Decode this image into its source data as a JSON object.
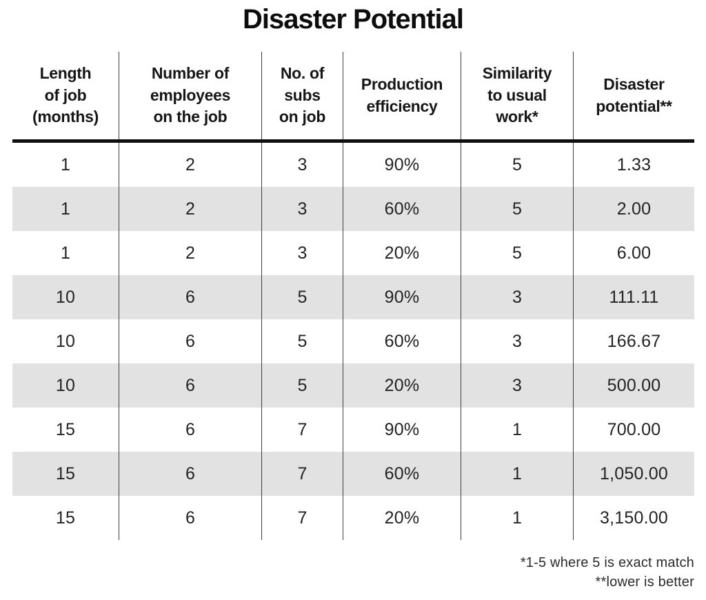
{
  "title": "Disaster Potential",
  "table": {
    "headers": [
      "Length\nof job\n(months)",
      "Number of\nemployees\non the job",
      "No. of\nsubs\non job",
      "Production\nefficiency",
      "Similarity\nto usual\nwork*",
      "Disaster\npotential**"
    ],
    "rows": [
      [
        "1",
        "2",
        "3",
        "90%",
        "5",
        "1.33"
      ],
      [
        "1",
        "2",
        "3",
        "60%",
        "5",
        "2.00"
      ],
      [
        "1",
        "2",
        "3",
        "20%",
        "5",
        "6.00"
      ],
      [
        "10",
        "6",
        "5",
        "90%",
        "3",
        "111.11"
      ],
      [
        "10",
        "6",
        "5",
        "60%",
        "3",
        "166.67"
      ],
      [
        "10",
        "6",
        "5",
        "20%",
        "3",
        "500.00"
      ],
      [
        "15",
        "6",
        "7",
        "90%",
        "1",
        "700.00"
      ],
      [
        "15",
        "6",
        "7",
        "60%",
        "1",
        "1,050.00"
      ],
      [
        "15",
        "6",
        "7",
        "20%",
        "1",
        "3,150.00"
      ]
    ]
  },
  "footnotes": {
    "line1": "*1-5 where 5 is exact match",
    "line2": "**lower is better"
  },
  "colors": {
    "shaded_row": "#e2e2e2",
    "divider": "#3c3c3c",
    "header_rule": "#0f0f0f",
    "text": "#1a1a1a"
  },
  "chart_data": {
    "type": "table",
    "title": "Disaster Potential",
    "columns": [
      "Length of job (months)",
      "Number of employees on the job",
      "No. of subs on job",
      "Production efficiency",
      "Similarity to usual work*",
      "Disaster potential**"
    ],
    "rows": [
      [
        1,
        2,
        3,
        "90%",
        5,
        1.33
      ],
      [
        1,
        2,
        3,
        "60%",
        5,
        2.0
      ],
      [
        1,
        2,
        3,
        "20%",
        5,
        6.0
      ],
      [
        10,
        6,
        5,
        "90%",
        3,
        111.11
      ],
      [
        10,
        6,
        5,
        "60%",
        3,
        166.67
      ],
      [
        10,
        6,
        5,
        "20%",
        3,
        500.0
      ],
      [
        15,
        6,
        7,
        "90%",
        1,
        700.0
      ],
      [
        15,
        6,
        7,
        "60%",
        1,
        1050.0
      ],
      [
        15,
        6,
        7,
        "20%",
        1,
        3150.0
      ]
    ],
    "footnotes": [
      "*1-5 where 5 is exact match",
      "**lower is better"
    ],
    "layout": {
      "shaded_rows": [
        2,
        4,
        6,
        8
      ],
      "row_shading_color": "#e2e2e2",
      "alignment": "center"
    }
  }
}
